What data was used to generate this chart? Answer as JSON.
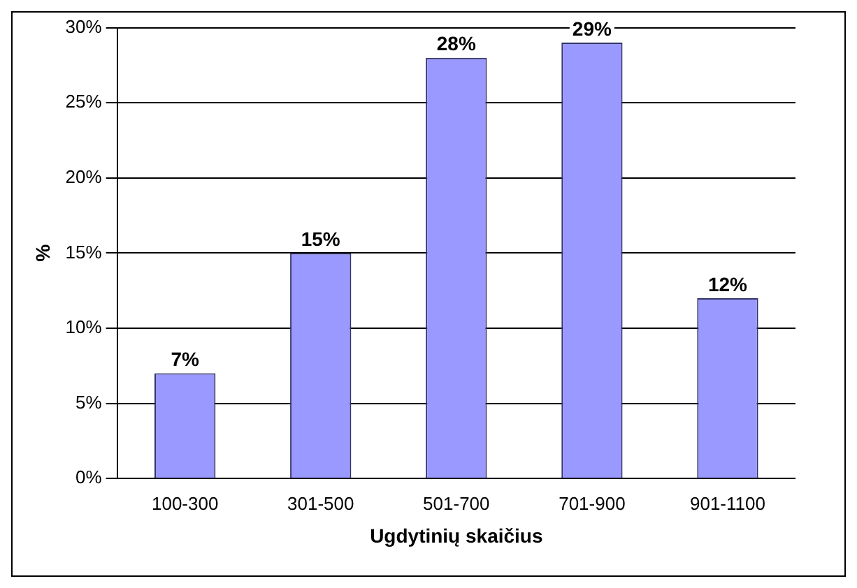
{
  "chart_data": {
    "type": "bar",
    "xlabel": "Ugdytinių skaičius",
    "ylabel": "%",
    "categories": [
      "100-300",
      "301-500",
      "501-700",
      "701-900",
      "901-1100"
    ],
    "values": [
      7,
      15,
      28,
      29,
      12
    ],
    "value_labels": [
      "7%",
      "15%",
      "28%",
      "29%",
      "12%"
    ],
    "color": "#9999ff",
    "ylim": [
      0,
      30
    ],
    "yticks": [
      {
        "value": 0,
        "label": "0%"
      },
      {
        "value": 5,
        "label": "5%"
      },
      {
        "value": 10,
        "label": "10%"
      },
      {
        "value": 15,
        "label": "15%"
      },
      {
        "value": 20,
        "label": "20%"
      },
      {
        "value": 25,
        "label": "25%"
      },
      {
        "value": 30,
        "label": "30%"
      }
    ],
    "grid": "y",
    "legend": false
  }
}
